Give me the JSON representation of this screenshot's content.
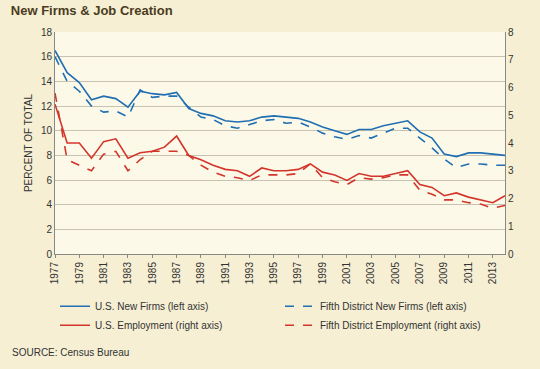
{
  "chart_data": {
    "type": "line",
    "title": "New Firms & Job Creation",
    "y_label": "PERCENT OF TOTAL",
    "source": "SOURCE: Census Bureau",
    "x": [
      1977,
      1978,
      1979,
      1980,
      1981,
      1982,
      1983,
      1984,
      1985,
      1986,
      1987,
      1988,
      1989,
      1990,
      1991,
      1992,
      1993,
      1994,
      1995,
      1996,
      1997,
      1998,
      1999,
      2000,
      2001,
      2002,
      2003,
      2004,
      2005,
      2006,
      2007,
      2008,
      2009,
      2010,
      2011,
      2012,
      2013,
      2014
    ],
    "xlim": [
      1977,
      2014
    ],
    "xticks": [
      1977,
      1979,
      1981,
      1983,
      1985,
      1987,
      1989,
      1991,
      1993,
      1995,
      1997,
      1999,
      2001,
      2003,
      2005,
      2007,
      2009,
      2011,
      2013
    ],
    "ylim": [
      0,
      18
    ],
    "yticks": [
      0,
      2,
      4,
      6,
      8,
      10,
      12,
      14,
      16,
      18
    ],
    "y2lim": [
      0,
      8
    ],
    "y2ticks": [
      0,
      1,
      2,
      3,
      4,
      5,
      6,
      7,
      8
    ],
    "grid": true,
    "legend": "bottom",
    "series": [
      {
        "name": "U.S. New Firms (left axis)",
        "color": "#1f6fb2",
        "line_style": "solid",
        "values": [
          16.5,
          14.7,
          13.9,
          12.5,
          12.8,
          12.6,
          11.9,
          13.2,
          13.0,
          12.9,
          13.1,
          11.8,
          11.4,
          11.2,
          10.8,
          10.7,
          10.8,
          11.1,
          11.2,
          11.1,
          11.0,
          10.7,
          10.3,
          10.0,
          9.7,
          10.1,
          10.1,
          10.4,
          10.6,
          10.8,
          9.9,
          9.4,
          8.1,
          7.9,
          8.2,
          8.2,
          8.1,
          8.0
        ]
      },
      {
        "name": "Fifth District New Firms (left axis)",
        "color": "#1f6fb2",
        "line_style": "dash",
        "values": [
          16.0,
          14.0,
          13.2,
          12.0,
          11.5,
          11.6,
          11.1,
          13.3,
          12.7,
          12.8,
          12.8,
          11.9,
          11.1,
          10.9,
          10.4,
          10.2,
          10.5,
          10.8,
          10.9,
          10.6,
          10.7,
          10.3,
          9.8,
          9.5,
          9.3,
          9.6,
          9.4,
          9.8,
          10.2,
          10.2,
          9.4,
          8.6,
          7.7,
          7.0,
          7.3,
          7.3,
          7.2,
          7.2
        ]
      },
      {
        "name": "U.S. Employment (right axis)",
        "color": "#d2352b",
        "line_style": "solid",
        "axis": "y2",
        "values": [
          5.4,
          4.0,
          4.0,
          3.45,
          4.05,
          4.15,
          3.45,
          3.65,
          3.7,
          3.85,
          4.25,
          3.55,
          3.4,
          3.2,
          3.05,
          3.0,
          2.8,
          3.1,
          3.0,
          3.0,
          3.05,
          3.25,
          2.95,
          2.85,
          2.65,
          2.9,
          2.8,
          2.8,
          2.9,
          3.0,
          2.5,
          2.4,
          2.1,
          2.2,
          2.05,
          1.95,
          1.85,
          2.1
        ]
      },
      {
        "name": "Fifth District Employment (right axis)",
        "color": "#d2352b",
        "line_style": "dash",
        "axis": "y2",
        "values": [
          5.8,
          3.4,
          3.2,
          3.0,
          3.6,
          3.7,
          3.0,
          3.4,
          3.7,
          3.7,
          3.7,
          3.55,
          3.2,
          2.95,
          2.8,
          2.75,
          2.65,
          2.85,
          2.85,
          2.85,
          2.9,
          3.25,
          2.75,
          2.6,
          2.5,
          2.75,
          2.7,
          2.75,
          2.85,
          2.85,
          2.3,
          2.15,
          1.95,
          1.95,
          1.85,
          1.8,
          1.65,
          1.75
        ]
      }
    ]
  }
}
